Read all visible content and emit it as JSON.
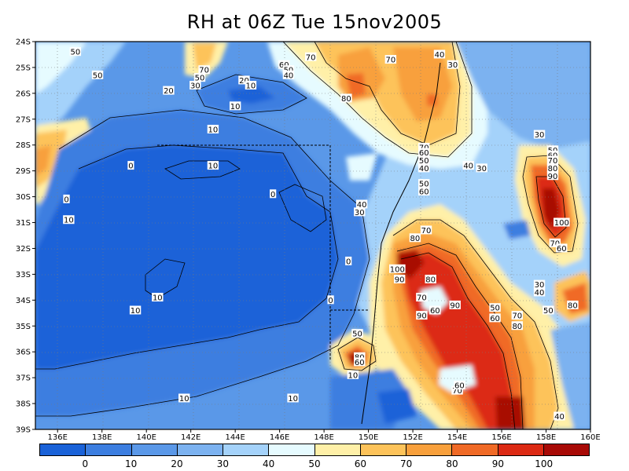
{
  "title": "RH at 06Z Tue 15nov2005",
  "x_ticks": [
    "136E",
    "138E",
    "140E",
    "142E",
    "144E",
    "146E",
    "148E",
    "150E",
    "152E",
    "154E",
    "156E",
    "158E",
    "160E"
  ],
  "y_ticks": [
    "24S",
    "25S",
    "26S",
    "27S",
    "28S",
    "29S",
    "30S",
    "31S",
    "32S",
    "33S",
    "34S",
    "35S",
    "36S",
    "37S",
    "38S",
    "39S"
  ],
  "colorbar": {
    "colors": [
      "#1a62d8",
      "#3c7ee0",
      "#5a98e8",
      "#7cb2f0",
      "#a4d2fa",
      "#e6fbff",
      "#fff0a8",
      "#fdc35a",
      "#f8a03c",
      "#f06a26",
      "#dc2a14",
      "#a80a06"
    ],
    "labels": [
      "0",
      "10",
      "20",
      "30",
      "40",
      "50",
      "60",
      "70",
      "80",
      "90",
      "100"
    ]
  },
  "contour_labels": [
    {
      "text": "50",
      "lon": 136.8,
      "lat": -24.4
    },
    {
      "text": "50",
      "lon": 137.8,
      "lat": -25.3
    },
    {
      "text": "20",
      "lon": 141.0,
      "lat": -25.9
    },
    {
      "text": "70",
      "lon": 142.6,
      "lat": -25.1
    },
    {
      "text": "50",
      "lon": 142.4,
      "lat": -25.4
    },
    {
      "text": "30",
      "lon": 142.2,
      "lat": -25.7
    },
    {
      "text": "20",
      "lon": 144.4,
      "lat": -25.5
    },
    {
      "text": "10",
      "lon": 144.7,
      "lat": -25.7
    },
    {
      "text": "10",
      "lon": 144.0,
      "lat": -26.5
    },
    {
      "text": "60",
      "lon": 146.2,
      "lat": -24.9
    },
    {
      "text": "50",
      "lon": 146.4,
      "lat": -25.1
    },
    {
      "text": "40",
      "lon": 146.4,
      "lat": -25.3
    },
    {
      "text": "70",
      "lon": 147.4,
      "lat": -24.6
    },
    {
      "text": "80",
      "lon": 149.0,
      "lat": -26.2
    },
    {
      "text": "70",
      "lon": 151.0,
      "lat": -24.7
    },
    {
      "text": "40",
      "lon": 153.2,
      "lat": -24.5
    },
    {
      "text": "30",
      "lon": 153.8,
      "lat": -24.9
    },
    {
      "text": "10",
      "lon": 143.0,
      "lat": -27.4
    },
    {
      "text": "10",
      "lon": 143.0,
      "lat": -28.8
    },
    {
      "text": "0",
      "lon": 139.3,
      "lat": -28.8
    },
    {
      "text": "0",
      "lon": 136.4,
      "lat": -30.1
    },
    {
      "text": "10",
      "lon": 136.5,
      "lat": -30.9
    },
    {
      "text": "0",
      "lon": 145.7,
      "lat": -29.9
    },
    {
      "text": "70",
      "lon": 152.5,
      "lat": -28.1
    },
    {
      "text": "60",
      "lon": 152.5,
      "lat": -28.3
    },
    {
      "text": "50",
      "lon": 152.5,
      "lat": -28.6
    },
    {
      "text": "40",
      "lon": 152.5,
      "lat": -28.9
    },
    {
      "text": "40",
      "lon": 154.5,
      "lat": -28.8
    },
    {
      "text": "30",
      "lon": 155.1,
      "lat": -28.9
    },
    {
      "text": "50",
      "lon": 152.5,
      "lat": -29.5
    },
    {
      "text": "60",
      "lon": 152.5,
      "lat": -29.8
    },
    {
      "text": "40",
      "lon": 149.7,
      "lat": -30.3
    },
    {
      "text": "30",
      "lon": 149.6,
      "lat": -30.6
    },
    {
      "text": "30",
      "lon": 157.7,
      "lat": -27.6
    },
    {
      "text": "50",
      "lon": 158.3,
      "lat": -28.2
    },
    {
      "text": "60",
      "lon": 158.3,
      "lat": -28.4
    },
    {
      "text": "70",
      "lon": 158.3,
      "lat": -28.6
    },
    {
      "text": "80",
      "lon": 158.3,
      "lat": -28.9
    },
    {
      "text": "90",
      "lon": 158.3,
      "lat": -29.2
    },
    {
      "text": "100",
      "lon": 158.7,
      "lat": -31.0
    },
    {
      "text": "70",
      "lon": 158.4,
      "lat": -31.8
    },
    {
      "text": "60",
      "lon": 158.7,
      "lat": -32.0
    },
    {
      "text": "70",
      "lon": 152.6,
      "lat": -31.3
    },
    {
      "text": "80",
      "lon": 152.1,
      "lat": -31.6
    },
    {
      "text": "100",
      "lon": 151.3,
      "lat": -32.8
    },
    {
      "text": "90",
      "lon": 151.4,
      "lat": -33.2
    },
    {
      "text": "80",
      "lon": 152.8,
      "lat": -33.2
    },
    {
      "text": "70",
      "lon": 152.4,
      "lat": -33.9
    },
    {
      "text": "60",
      "lon": 153.0,
      "lat": -34.4
    },
    {
      "text": "90",
      "lon": 153.9,
      "lat": -34.2
    },
    {
      "text": "90",
      "lon": 152.4,
      "lat": -34.6
    },
    {
      "text": "50",
      "lon": 155.7,
      "lat": -34.3
    },
    {
      "text": "60",
      "lon": 155.7,
      "lat": -34.7
    },
    {
      "text": "70",
      "lon": 156.7,
      "lat": -34.6
    },
    {
      "text": "80",
      "lon": 156.7,
      "lat": -35.0
    },
    {
      "text": "30",
      "lon": 157.7,
      "lat": -33.4
    },
    {
      "text": "40",
      "lon": 157.7,
      "lat": -33.7
    },
    {
      "text": "50",
      "lon": 158.1,
      "lat": -34.4
    },
    {
      "text": "80",
      "lon": 159.2,
      "lat": -34.2
    },
    {
      "text": "0",
      "lon": 149.1,
      "lat": -32.5
    },
    {
      "text": "0",
      "lon": 148.3,
      "lat": -34.0
    },
    {
      "text": "10",
      "lon": 140.5,
      "lat": -33.9
    },
    {
      "text": "10",
      "lon": 139.5,
      "lat": -34.4
    },
    {
      "text": "50",
      "lon": 149.5,
      "lat": -35.3
    },
    {
      "text": "80",
      "lon": 149.6,
      "lat": -36.2
    },
    {
      "text": "60",
      "lon": 149.6,
      "lat": -36.4
    },
    {
      "text": "10",
      "lon": 149.3,
      "lat": -36.9
    },
    {
      "text": "10",
      "lon": 141.7,
      "lat": -37.8
    },
    {
      "text": "10",
      "lon": 146.6,
      "lat": -37.8
    },
    {
      "text": "70",
      "lon": 154.0,
      "lat": -37.5
    },
    {
      "text": "60",
      "lon": 154.1,
      "lat": -37.3
    },
    {
      "text": "40",
      "lon": 158.6,
      "lat": -38.5
    }
  ]
}
